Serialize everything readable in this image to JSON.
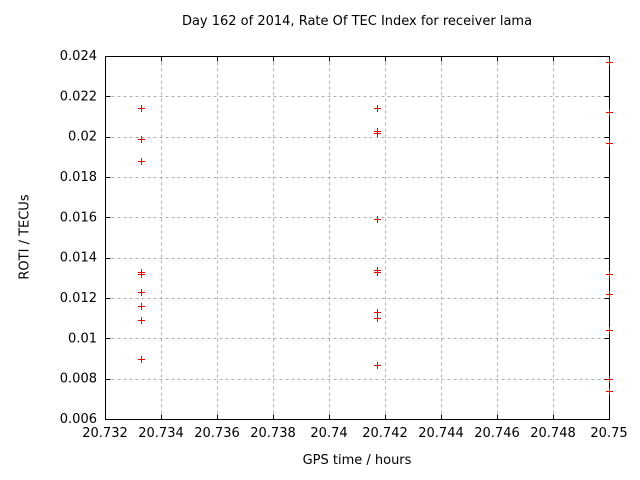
{
  "chart_data": {
    "type": "scatter",
    "title": "Day 162 of 2014, Rate Of TEC Index for receiver lama",
    "xlabel": "GPS time / hours",
    "ylabel": "ROTI / TECUs",
    "xlim": [
      20.732,
      20.75
    ],
    "ylim": [
      0.006,
      0.024
    ],
    "xtick_values": [
      20.732,
      20.734,
      20.736,
      20.738,
      20.74,
      20.742,
      20.744,
      20.746,
      20.748,
      20.75
    ],
    "xtick_labels": [
      "20.732",
      "20.734",
      "20.736",
      "20.738",
      "20.74",
      "20.742",
      "20.744",
      "20.746",
      "20.748",
      "20.75"
    ],
    "ytick_values": [
      0.006,
      0.008,
      0.01,
      0.012,
      0.014,
      0.016,
      0.018,
      0.02,
      0.022,
      0.024
    ],
    "ytick_labels": [
      "0.006",
      "0.008",
      "0.01",
      "0.012",
      "0.014",
      "0.016",
      "0.018",
      "0.02",
      "0.022",
      "0.024"
    ],
    "grid": true,
    "legend": "none",
    "marker": {
      "shape": "plus",
      "size": 7,
      "color": "#ee0000"
    },
    "colors": {
      "marker": "#ee0000",
      "grid": "#b0b0b0",
      "axis": "#000000",
      "text": "#000000",
      "background": "#ffffff"
    },
    "series": [
      {
        "name": "ROTI",
        "points": [
          [
            20.7333,
            0.0214
          ],
          [
            20.7333,
            0.0199
          ],
          [
            20.7333,
            0.0188
          ],
          [
            20.7333,
            0.0133
          ],
          [
            20.7333,
            0.0132
          ],
          [
            20.7333,
            0.0123
          ],
          [
            20.7333,
            0.0116
          ],
          [
            20.7333,
            0.0109
          ],
          [
            20.7333,
            0.009
          ],
          [
            20.7417,
            0.0214
          ],
          [
            20.7417,
            0.0203
          ],
          [
            20.7417,
            0.0202
          ],
          [
            20.7417,
            0.0159
          ],
          [
            20.7417,
            0.0134
          ],
          [
            20.7417,
            0.0133
          ],
          [
            20.7417,
            0.0113
          ],
          [
            20.7417,
            0.011
          ],
          [
            20.7417,
            0.0087
          ],
          [
            20.75,
            0.0237
          ],
          [
            20.75,
            0.0212
          ],
          [
            20.75,
            0.0197
          ],
          [
            20.75,
            0.0132
          ],
          [
            20.75,
            0.0122
          ],
          [
            20.75,
            0.0104
          ],
          [
            20.75,
            0.008
          ],
          [
            20.75,
            0.0074
          ]
        ]
      }
    ]
  }
}
